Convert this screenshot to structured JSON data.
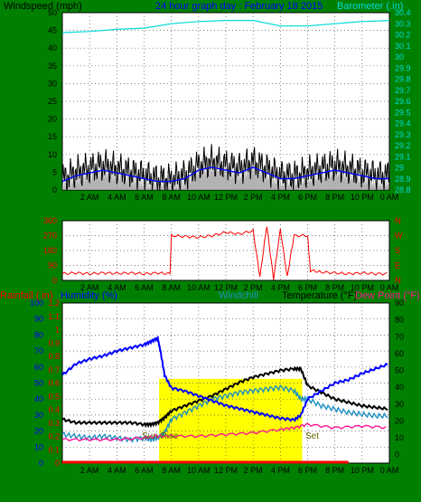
{
  "header": {
    "left_label": "Windspeed (mph)",
    "title": "24 hour graph day : February 18 2015",
    "right_label": "Barometer (.in)"
  },
  "bottom_header": {
    "rainfall_label": "Rainfall (.in)",
    "humidity_label": "Humidity (%)",
    "windchill_label": "Windchill",
    "temperature_label": "Temperature (°F)",
    "dewpoint_label": "Dew Point (°F)"
  },
  "annotations": {
    "sunrise": "Sun Rise",
    "sunset": "Set"
  },
  "colors": {
    "background": "#008000",
    "plot_bg": "#ffffff",
    "windspeed": "#000000",
    "wind_avg": "#0000ff",
    "gust_fill": "#a0a0a0",
    "barometer": "#00d8d8",
    "direction": "#ff0000",
    "humidity": "#0000ff",
    "windchill": "#1f8fc0",
    "temperature": "#000000",
    "dewpoint": "#ff1493",
    "rainfall": "#ff0000",
    "daylight": "#ffff00"
  },
  "chart_data": [
    {
      "type": "line",
      "x_ticks": [
        "2 AM",
        "4 AM",
        "6 AM",
        "8 AM",
        "10 AM",
        "12 PM",
        "2 PM",
        "4 PM",
        "6 PM",
        "8 PM",
        "10 PM",
        "0 AM"
      ],
      "xlim": [
        0,
        24
      ],
      "ylim": [
        0,
        50
      ],
      "y_ticks": [
        "0",
        "5",
        "10",
        "15",
        "20",
        "25",
        "30",
        "35",
        "40",
        "45",
        "50"
      ],
      "y2lim": [
        28.8,
        30.4
      ],
      "y2_ticks": [
        "28.8",
        "28.9",
        "29",
        "29.1",
        "29.2",
        "29.3",
        "29.4",
        "29.5",
        "29.6",
        "29.7",
        "29.8",
        "29.9",
        "30",
        "30.1",
        "30.2",
        "30.3",
        "30.4"
      ],
      "series": [
        {
          "name": "Windspeed",
          "axis": "left",
          "x": [
            0,
            1,
            2,
            3,
            4,
            5,
            6,
            7,
            8,
            9,
            10,
            11,
            12,
            13,
            14,
            15,
            16,
            17,
            18,
            19,
            20,
            21,
            22,
            23,
            24
          ],
          "values": [
            3,
            5,
            6,
            7,
            6,
            5,
            4,
            3,
            3,
            4,
            7,
            8,
            7,
            6,
            8,
            6,
            4,
            4,
            5,
            6,
            7,
            6,
            5,
            4,
            4
          ]
        },
        {
          "name": "Barometer",
          "axis": "right",
          "x": [
            0,
            2,
            4,
            6,
            8,
            10,
            12,
            14,
            16,
            18,
            20,
            22,
            24
          ],
          "values": [
            30.22,
            30.23,
            30.25,
            30.26,
            30.3,
            30.32,
            30.33,
            30.33,
            30.28,
            30.28,
            30.3,
            30.32,
            30.33
          ]
        }
      ],
      "grid": true
    },
    {
      "type": "line",
      "x_ticks": [
        "2 AM",
        "4 AM",
        "6 AM",
        "8 AM",
        "10 AM",
        "12 PM",
        "2 PM",
        "4 PM",
        "6 PM",
        "8 PM",
        "10 PM",
        "0 AM"
      ],
      "xlim": [
        0,
        24
      ],
      "ylim": [
        0,
        360
      ],
      "y_ticks": [
        "0",
        "90",
        "180",
        "270",
        "360"
      ],
      "y2_ticks": [
        "N",
        "E",
        "S",
        "W",
        "N"
      ],
      "series": [
        {
          "name": "Wind Direction",
          "x": [
            0,
            1,
            2,
            3,
            4,
            5,
            6,
            7,
            7.9,
            8,
            9,
            10,
            11,
            12,
            13,
            14,
            14.5,
            15,
            15.5,
            16,
            16.5,
            17,
            18,
            18.2,
            19,
            20,
            21,
            22,
            23,
            24
          ],
          "values": [
            40,
            45,
            40,
            45,
            42,
            45,
            40,
            45,
            40,
            270,
            265,
            260,
            270,
            290,
            280,
            300,
            20,
            330,
            10,
            310,
            20,
            270,
            270,
            60,
            50,
            45,
            40,
            45,
            40,
            40
          ]
        }
      ],
      "grid": true
    },
    {
      "type": "line",
      "x_ticks": [
        "2 AM",
        "4 AM",
        "6 AM",
        "8 AM",
        "10 AM",
        "12 PM",
        "2 PM",
        "4 PM",
        "6 PM",
        "8 PM",
        "10 PM",
        "0 AM"
      ],
      "xlim": [
        0,
        24
      ],
      "y_left_humidity_ticks": [
        "0",
        "10",
        "20",
        "30",
        "40",
        "50",
        "60",
        "70",
        "80",
        "90",
        "100"
      ],
      "y_left_rain_ticks": [
        "0",
        "0.1",
        "0.2",
        "0.3",
        "0.4",
        "0.5",
        "0.6",
        "0.7",
        "0.8",
        "0.9",
        "1",
        "1.1",
        "1.2"
      ],
      "y_right_ticks": [
        "0",
        "10",
        "20",
        "30",
        "40",
        "50",
        "60",
        "70",
        "80",
        "90"
      ],
      "y_right_lim": [
        0,
        95
      ],
      "series": [
        {
          "name": "Humidity",
          "axis": "humidity",
          "x": [
            0,
            1,
            2,
            3,
            4,
            5,
            6,
            6.5,
            7,
            7.2,
            7.5,
            8,
            9,
            10,
            11,
            12,
            13,
            14,
            15,
            16,
            17,
            17.5,
            18,
            19,
            20,
            21,
            22,
            23,
            24
          ],
          "values": [
            55,
            62,
            65,
            67,
            70,
            72,
            74,
            76,
            78,
            70,
            55,
            47,
            45,
            42,
            39,
            36,
            34,
            32,
            30,
            28,
            27,
            30,
            40,
            45,
            50,
            52,
            56,
            59,
            62
          ]
        },
        {
          "name": "Temperature",
          "axis": "right",
          "x": [
            0,
            1,
            2,
            3,
            4,
            5,
            6,
            6.5,
            7,
            7.5,
            8,
            9,
            10,
            11,
            12,
            13,
            14,
            15,
            16,
            17,
            17.5,
            18,
            19,
            20,
            21,
            22,
            23,
            24
          ],
          "values": [
            26,
            24,
            24,
            24,
            24,
            24,
            23,
            23,
            24,
            27,
            31,
            34,
            37,
            40,
            44,
            48,
            51,
            53,
            55,
            56,
            56,
            46,
            42,
            38,
            36,
            34,
            33,
            32
          ]
        },
        {
          "name": "Windchill",
          "axis": "right",
          "x": [
            0,
            1,
            2,
            3,
            4,
            5,
            6,
            6.5,
            7,
            7.5,
            8,
            9,
            10,
            11,
            12,
            13,
            14,
            15,
            16,
            17,
            17.5,
            18,
            19,
            20,
            21,
            22,
            23,
            24
          ],
          "values": [
            17,
            16,
            15,
            16,
            15,
            14,
            15,
            14,
            15,
            18,
            26,
            30,
            34,
            38,
            40,
            42,
            43,
            44,
            45,
            43,
            38,
            38,
            34,
            32,
            30,
            29,
            28,
            28
          ]
        },
        {
          "name": "Dew Point",
          "axis": "right",
          "x": [
            0,
            2,
            4,
            6,
            7,
            8,
            10,
            12,
            14,
            16,
            17,
            18,
            20,
            22,
            24
          ],
          "values": [
            14,
            14,
            14,
            15,
            16,
            16,
            16,
            17,
            18,
            20,
            21,
            23,
            21,
            22,
            21
          ]
        },
        {
          "name": "Rainfall",
          "axis": "rain",
          "x": [
            0,
            24
          ],
          "values": [
            0,
            0
          ]
        }
      ],
      "daylight": {
        "start": 7.1,
        "end": 17.6
      },
      "grid": true
    }
  ]
}
